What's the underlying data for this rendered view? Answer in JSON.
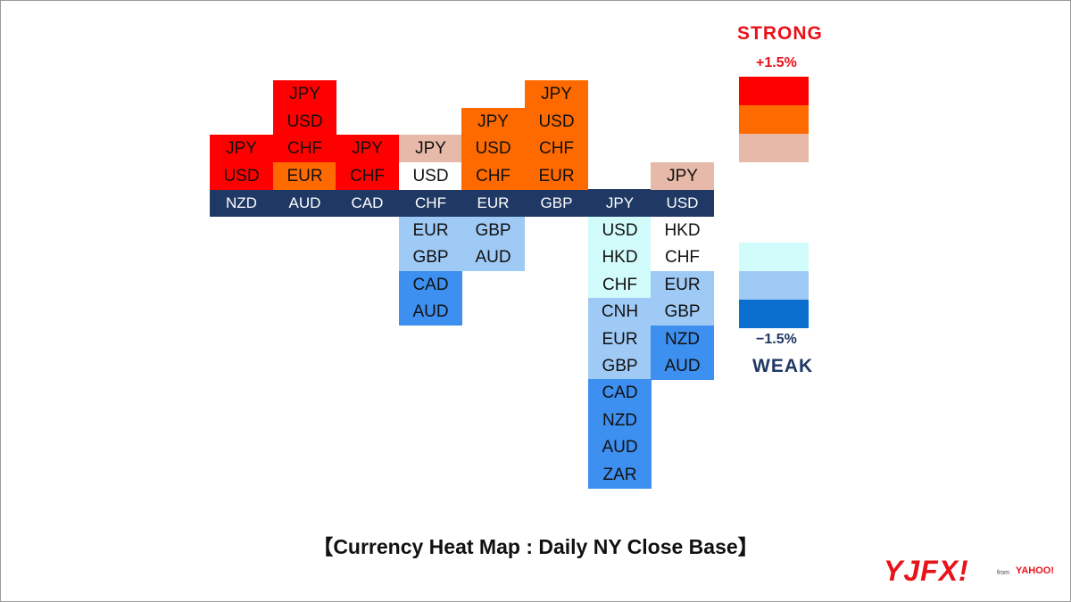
{
  "chart_data": {
    "type": "heatmap",
    "title": "【Currency Heat Map : Daily NY Close Base】",
    "columns": [
      {
        "base": "NZD",
        "stronger": [
          "JPY",
          "USD"
        ],
        "weaker": []
      },
      {
        "base": "AUD",
        "stronger": [
          "JPY",
          "USD",
          "CHF",
          "EUR"
        ],
        "weaker": []
      },
      {
        "base": "CAD",
        "stronger": [
          "JPY",
          "CHF"
        ],
        "weaker": []
      },
      {
        "base": "CHF",
        "stronger": [
          "JPY",
          "USD"
        ],
        "weaker": [
          "EUR",
          "GBP",
          "CAD",
          "AUD"
        ]
      },
      {
        "base": "EUR",
        "stronger": [
          "JPY",
          "USD",
          "CHF"
        ],
        "weaker": [
          "GBP",
          "AUD"
        ]
      },
      {
        "base": "GBP",
        "stronger": [
          "JPY",
          "USD",
          "CHF",
          "EUR"
        ],
        "weaker": []
      },
      {
        "base": "JPY",
        "stronger": [],
        "weaker": [
          "USD",
          "HKD",
          "CHF",
          "CNH",
          "EUR",
          "GBP",
          "CAD",
          "NZD",
          "AUD",
          "ZAR"
        ]
      },
      {
        "base": "USD",
        "stronger": [
          "JPY"
        ],
        "weaker": [
          "HKD",
          "CHF",
          "EUR",
          "GBP",
          "NZD",
          "AUD"
        ]
      }
    ],
    "cell_colors": [
      [
        "#ff0000",
        "#ff0000"
      ],
      [
        "#ff0000",
        "#ff0000",
        "#ff0000",
        "#ff6a00"
      ],
      [
        "#ff0000",
        "#ff0000"
      ],
      [
        "#e6b9a8",
        "#ffffff",
        "#9fcaf6",
        "#9fcaf6",
        "#3d8ff0",
        "#3d8ff0"
      ],
      [
        "#ff6a00",
        "#ff6a00",
        "#ff6a00",
        "#9fcaf6",
        "#9fcaf6"
      ],
      [
        "#ff6a00",
        "#ff6a00",
        "#ff6a00",
        "#ff6a00"
      ],
      [
        "#d2fbfb",
        "#d2fbfb",
        "#d2fbfb",
        "#9fcaf6",
        "#9fcaf6",
        "#9fcaf6",
        "#3d8ff0",
        "#3d8ff0",
        "#3d8ff0",
        "#3d8ff0"
      ],
      [
        "#e6b9a8",
        "#ffffff",
        "#ffffff",
        "#9fcaf6",
        "#9fcaf6",
        "#3d8ff0",
        "#3d8ff0"
      ]
    ],
    "legend": {
      "strong_label": "STRONG",
      "weak_label": "WEAK",
      "max_label": "+1.5%",
      "min_label": "−1.5%",
      "strong_colors": [
        "#ff0000",
        "#ff6a00",
        "#e6b9a8"
      ],
      "weak_colors": [
        "#d2fbfb",
        "#9fcaf6",
        "#0a6fce"
      ],
      "placement": "right"
    },
    "base_bar_color": "#1f3864"
  },
  "logo": {
    "main": "YJFX!",
    "sub": "from",
    "brand": "YAHOO!"
  }
}
